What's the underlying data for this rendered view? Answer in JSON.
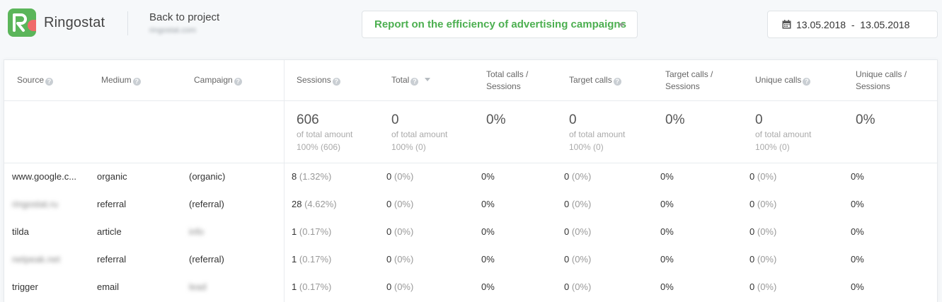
{
  "header": {
    "brand": "Ringostat",
    "back_label": "Back to project",
    "project_url": "ringostat.com",
    "report_select": "Report on the efficiency of advertising campaigns",
    "date_range": "13.05.2018  -  13.05.2018"
  },
  "colors": {
    "accent": "#4caf50",
    "logo_bg": "#5bb55a",
    "logo_mark": "#f06a6a"
  },
  "icons": {
    "calendar": "calendar-icon",
    "help": "question-circle-icon",
    "caret": "caret-down-icon"
  },
  "table": {
    "headers": {
      "source": "Source",
      "medium": "Medium",
      "campaign": "Campaign",
      "sessions": "Sessions",
      "total": "Total",
      "total_calls_sessions_1": "Total calls /",
      "total_calls_sessions_2": "Sessions",
      "target_calls": "Target calls",
      "target_calls_sessions_1": "Target calls /",
      "target_calls_sessions_2": "Sessions",
      "unique_calls": "Unique calls",
      "unique_calls_sessions_1": "Unique calls /",
      "unique_calls_sessions_2": "Sessions"
    },
    "totals": {
      "sessions": {
        "value": "606",
        "label": "of total amount",
        "share": "100% (606)"
      },
      "total": {
        "value": "0",
        "label": "of total amount",
        "share": "100% (0)"
      },
      "total_calls_sessions": {
        "value": "0%"
      },
      "target_calls": {
        "value": "0",
        "label": "of total amount",
        "share": "100% (0)"
      },
      "target_calls_sessions": {
        "value": "0%"
      },
      "unique_calls": {
        "value": "0",
        "label": "of total amount",
        "share": "100% (0)"
      },
      "unique_calls_sessions": {
        "value": "0%"
      }
    },
    "rows": [
      {
        "source": "www.google.c...",
        "medium": "organic",
        "campaign": "(organic)",
        "sessions": "8",
        "sessions_pct": "(1.32%)",
        "total": "0",
        "total_pct": "(0%)",
        "tcs": "0%",
        "target": "0",
        "target_pct": "(0%)",
        "tgs": "0%",
        "unique": "0",
        "unique_pct": "(0%)",
        "ucs": "0%"
      },
      {
        "source": "ringostat.ru",
        "medium": "referral",
        "campaign": "(referral)",
        "sessions": "28",
        "sessions_pct": "(4.62%)",
        "total": "0",
        "total_pct": "(0%)",
        "tcs": "0%",
        "target": "0",
        "target_pct": "(0%)",
        "tgs": "0%",
        "unique": "0",
        "unique_pct": "(0%)",
        "ucs": "0%"
      },
      {
        "source": "tilda",
        "medium": "article",
        "campaign": "info",
        "sessions": "1",
        "sessions_pct": "(0.17%)",
        "total": "0",
        "total_pct": "(0%)",
        "tcs": "0%",
        "target": "0",
        "target_pct": "(0%)",
        "tgs": "0%",
        "unique": "0",
        "unique_pct": "(0%)",
        "ucs": "0%"
      },
      {
        "source": "netpeak.net",
        "medium": "referral",
        "campaign": "(referral)",
        "sessions": "1",
        "sessions_pct": "(0.17%)",
        "total": "0",
        "total_pct": "(0%)",
        "tcs": "0%",
        "target": "0",
        "target_pct": "(0%)",
        "tgs": "0%",
        "unique": "0",
        "unique_pct": "(0%)",
        "ucs": "0%"
      },
      {
        "source": "trigger",
        "medium": "email",
        "campaign": "lead",
        "sessions": "1",
        "sessions_pct": "(0.17%)",
        "total": "0",
        "total_pct": "(0%)",
        "tcs": "0%",
        "target": "0",
        "target_pct": "(0%)",
        "tgs": "0%",
        "unique": "0",
        "unique_pct": "(0%)",
        "ucs": "0%"
      }
    ]
  }
}
